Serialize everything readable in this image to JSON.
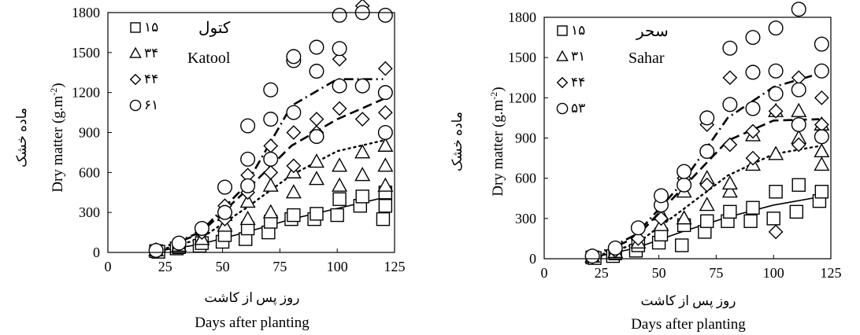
{
  "chart_data": [
    {
      "type": "scatter",
      "title": "Katool",
      "title_fa": "کتول",
      "xlabel": "Days after planting",
      "xlabel_fa": "روز پس از کاشت",
      "ylabel": "Dry matter (g.m-2)",
      "ylabel_fa": "ماده خشک",
      "xlim": [
        0,
        125
      ],
      "ylim": [
        0,
        1800
      ],
      "xticks": [
        "0",
        "25",
        "50",
        "75",
        "100",
        "125"
      ],
      "yticks": [
        "0",
        "300",
        "600",
        "900",
        "1200",
        "1500",
        "1800"
      ],
      "grid": false,
      "legend_position": "top-left",
      "series": [
        {
          "name": "۱۵",
          "marker": "square",
          "fit": "solid",
          "points": [
            [
              21,
              10
            ],
            [
              22,
              5
            ],
            [
              30,
              30
            ],
            [
              31,
              40
            ],
            [
              40,
              50
            ],
            [
              41,
              70
            ],
            [
              50,
              80
            ],
            [
              51,
              130
            ],
            [
              60,
              100
            ],
            [
              61,
              180
            ],
            [
              70,
              150
            ],
            [
              71,
              230
            ],
            [
              80,
              250
            ],
            [
              81,
              280
            ],
            [
              90,
              250
            ],
            [
              91,
              290
            ],
            [
              100,
              280
            ],
            [
              101,
              400
            ],
            [
              110,
              350
            ],
            [
              111,
              420
            ],
            [
              120,
              250
            ],
            [
              121,
              350
            ],
            [
              121,
              450
            ]
          ],
          "fit_points": [
            [
              21,
              8
            ],
            [
              40,
              60
            ],
            [
              60,
              150
            ],
            [
              80,
              250
            ],
            [
              100,
              330
            ],
            [
              120,
              410
            ]
          ]
        },
        {
          "name": "۳۴",
          "marker": "triangle",
          "fit": "dotted",
          "points": [
            [
              21,
              15
            ],
            [
              31,
              50
            ],
            [
              41,
              100
            ],
            [
              51,
              200
            ],
            [
              51,
              280
            ],
            [
              61,
              250
            ],
            [
              61,
              380
            ],
            [
              71,
              300
            ],
            [
              71,
              500
            ],
            [
              81,
              450
            ],
            [
              81,
              600
            ],
            [
              91,
              550
            ],
            [
              91,
              680
            ],
            [
              101,
              500
            ],
            [
              101,
              650
            ],
            [
              111,
              580
            ],
            [
              111,
              750
            ],
            [
              121,
              500
            ],
            [
              121,
              650
            ],
            [
              121,
              800
            ]
          ],
          "fit_points": [
            [
              21,
              10
            ],
            [
              40,
              100
            ],
            [
              60,
              330
            ],
            [
              80,
              580
            ],
            [
              100,
              760
            ],
            [
              120,
              840
            ]
          ]
        },
        {
          "name": "۴۴",
          "marker": "diamond",
          "fit": "dashed",
          "points": [
            [
              21,
              20
            ],
            [
              31,
              60
            ],
            [
              41,
              150
            ],
            [
              51,
              250
            ],
            [
              51,
              350
            ],
            [
              61,
              450
            ],
            [
              61,
              580
            ],
            [
              71,
              600
            ],
            [
              71,
              800
            ],
            [
              81,
              650
            ],
            [
              81,
              900
            ],
            [
              91,
              900
            ],
            [
              91,
              1000
            ],
            [
              101,
              1080
            ],
            [
              101,
              1450
            ],
            [
              111,
              1000
            ],
            [
              111,
              1850
            ],
            [
              121,
              1050
            ],
            [
              121,
              1380
            ]
          ],
          "fit_points": [
            [
              21,
              12
            ],
            [
              40,
              140
            ],
            [
              60,
              460
            ],
            [
              80,
              800
            ],
            [
              100,
              1000
            ],
            [
              120,
              1150
            ]
          ]
        },
        {
          "name": "۶۱",
          "marker": "circle",
          "fit": "dashdot",
          "points": [
            [
              21,
              15
            ],
            [
              31,
              70
            ],
            [
              41,
              180
            ],
            [
              51,
              300
            ],
            [
              51,
              490
            ],
            [
              61,
              500
            ],
            [
              61,
              700
            ],
            [
              61,
              950
            ],
            [
              71,
              700
            ],
            [
              71,
              1000
            ],
            [
              71,
              1220
            ],
            [
              81,
              1050
            ],
            [
              81,
              1440
            ],
            [
              81,
              1470
            ],
            [
              91,
              870
            ],
            [
              91,
              1360
            ],
            [
              91,
              1540
            ],
            [
              101,
              1250
            ],
            [
              101,
              1530
            ],
            [
              101,
              1780
            ],
            [
              111,
              1250
            ],
            [
              111,
              1800
            ],
            [
              121,
              900
            ],
            [
              121,
              1200
            ],
            [
              121,
              1780
            ]
          ],
          "fit_points": [
            [
              21,
              15
            ],
            [
              40,
              150
            ],
            [
              60,
              500
            ],
            [
              80,
              1100
            ],
            [
              100,
              1300
            ],
            [
              120,
              1300
            ]
          ]
        }
      ]
    },
    {
      "type": "scatter",
      "title": "Sahar",
      "title_fa": "سحر",
      "xlabel": "Days after planting",
      "xlabel_fa": "روز پس از کاشت",
      "ylabel": "Dry matter (g.m-2)",
      "ylabel_fa": "ماده خشک",
      "xlim": [
        0,
        125
      ],
      "ylim": [
        0,
        1800
      ],
      "xticks": [
        "0",
        "25",
        "50",
        "75",
        "100",
        "125"
      ],
      "yticks": [
        "0",
        "300",
        "600",
        "900",
        "1200",
        "1500",
        "1800"
      ],
      "grid": false,
      "legend_position": "top-left",
      "series": [
        {
          "name": "۱۵",
          "marker": "square",
          "fit": "solid",
          "points": [
            [
              21,
              10
            ],
            [
              22,
              5
            ],
            [
              30,
              20
            ],
            [
              31,
              40
            ],
            [
              40,
              60
            ],
            [
              41,
              100
            ],
            [
              50,
              120
            ],
            [
              51,
              180
            ],
            [
              60,
              100
            ],
            [
              61,
              250
            ],
            [
              70,
              200
            ],
            [
              71,
              280
            ],
            [
              80,
              280
            ],
            [
              81,
              350
            ],
            [
              90,
              280
            ],
            [
              91,
              380
            ],
            [
              100,
              300
            ],
            [
              101,
              500
            ],
            [
              110,
              350
            ],
            [
              111,
              550
            ],
            [
              120,
              430
            ],
            [
              121,
              500
            ]
          ],
          "fit_points": [
            [
              21,
              8
            ],
            [
              40,
              80
            ],
            [
              60,
              200
            ],
            [
              80,
              310
            ],
            [
              100,
              400
            ],
            [
              120,
              460
            ]
          ]
        },
        {
          "name": "۳۱",
          "marker": "triangle",
          "fit": "dotted",
          "points": [
            [
              21,
              15
            ],
            [
              31,
              50
            ],
            [
              41,
              120
            ],
            [
              51,
              250
            ],
            [
              51,
              330
            ],
            [
              61,
              300
            ],
            [
              61,
              500
            ],
            [
              71,
              400
            ],
            [
              71,
              600
            ],
            [
              81,
              500
            ],
            [
              81,
              560
            ],
            [
              91,
              700
            ],
            [
              91,
              920
            ],
            [
              101,
              780
            ],
            [
              101,
              1100
            ],
            [
              111,
              900
            ],
            [
              111,
              1100
            ],
            [
              121,
              700
            ],
            [
              121,
              800
            ],
            [
              121,
              1000
            ]
          ],
          "fit_points": [
            [
              21,
              10
            ],
            [
              40,
              110
            ],
            [
              60,
              360
            ],
            [
              80,
              620
            ],
            [
              100,
              780
            ],
            [
              120,
              840
            ]
          ]
        },
        {
          "name": "۴۴",
          "marker": "diamond",
          "fit": "dashed",
          "points": [
            [
              21,
              15
            ],
            [
              31,
              60
            ],
            [
              41,
              150
            ],
            [
              51,
              300
            ],
            [
              61,
              600
            ],
            [
              61,
              650
            ],
            [
              71,
              550
            ],
            [
              71,
              1000
            ],
            [
              81,
              850
            ],
            [
              81,
              1350
            ],
            [
              91,
              750
            ],
            [
              91,
              950
            ],
            [
              101,
              200
            ],
            [
              101,
              1100
            ],
            [
              111,
              850
            ],
            [
              111,
              1350
            ],
            [
              121,
              1000
            ],
            [
              121,
              1200
            ]
          ],
          "fit_points": [
            [
              21,
              12
            ],
            [
              40,
              160
            ],
            [
              60,
              520
            ],
            [
              80,
              880
            ],
            [
              100,
              1030
            ],
            [
              120,
              1040
            ]
          ]
        },
        {
          "name": "۵۳",
          "marker": "circle",
          "fit": "dashdot",
          "points": [
            [
              21,
              20
            ],
            [
              31,
              80
            ],
            [
              41,
              230
            ],
            [
              51,
              400
            ],
            [
              51,
              470
            ],
            [
              61,
              550
            ],
            [
              61,
              650
            ],
            [
              71,
              800
            ],
            [
              71,
              1050
            ],
            [
              81,
              1150
            ],
            [
              81,
              1570
            ],
            [
              91,
              1120
            ],
            [
              91,
              1390
            ],
            [
              91,
              1650
            ],
            [
              101,
              1230
            ],
            [
              101,
              1400
            ],
            [
              101,
              1720
            ],
            [
              111,
              1000
            ],
            [
              111,
              1260
            ],
            [
              111,
              1900
            ],
            [
              121,
              910
            ],
            [
              121,
              1400
            ],
            [
              121,
              1600
            ]
          ],
          "fit_points": [
            [
              21,
              15
            ],
            [
              40,
              180
            ],
            [
              60,
              560
            ],
            [
              80,
              1050
            ],
            [
              100,
              1280
            ],
            [
              120,
              1380
            ]
          ]
        }
      ]
    }
  ]
}
